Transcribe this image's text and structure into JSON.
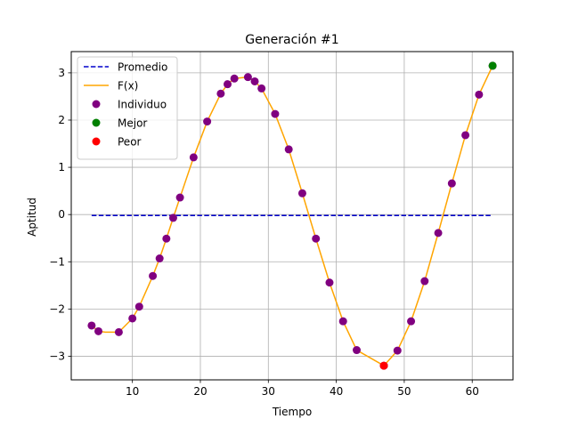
{
  "chart_data": {
    "type": "line",
    "title": "Generación #1",
    "xlabel": "Tiempo",
    "ylabel": "Aptitud",
    "xlim": [
      1,
      66
    ],
    "ylim": [
      -3.5,
      3.45
    ],
    "xticks": [
      10,
      20,
      30,
      40,
      50,
      60
    ],
    "yticks": [
      -3,
      -2,
      -1,
      0,
      1,
      2,
      3
    ],
    "grid": true,
    "legend_position": "top-left",
    "legend": [
      "Promedio",
      "F(x)",
      "Individuo",
      "Mejor",
      "Peor"
    ],
    "series": [
      {
        "name": "Promedio",
        "kind": "dashed-line",
        "color": "#0000cc",
        "x": [
          4,
          63
        ],
        "y": [
          -0.02,
          -0.02
        ]
      },
      {
        "name": "F(x)",
        "kind": "line",
        "color": "#ffa500",
        "x": [
          4,
          5,
          6,
          8,
          10,
          11,
          13,
          14,
          15,
          16,
          17,
          19,
          21,
          23,
          24,
          25,
          27,
          28,
          29,
          31,
          33,
          35,
          37,
          39,
          41,
          43,
          47,
          49,
          51,
          53,
          55,
          57,
          59,
          61,
          63
        ],
        "y": [
          -2.35,
          -2.47,
          -2.49,
          -2.49,
          -2.2,
          -1.95,
          -1.3,
          -0.93,
          -0.51,
          -0.07,
          0.36,
          1.21,
          1.97,
          2.56,
          2.76,
          2.88,
          2.91,
          2.82,
          2.67,
          2.13,
          1.38,
          0.45,
          -0.51,
          -1.44,
          -2.26,
          -2.87,
          -3.2,
          -2.88,
          -2.26,
          -1.41,
          -0.39,
          0.66,
          1.68,
          2.54,
          3.15
        ]
      },
      {
        "name": "Individuo",
        "kind": "scatter",
        "color": "#800080",
        "x": [
          4,
          5,
          8,
          10,
          11,
          13,
          14,
          15,
          16,
          17,
          19,
          21,
          23,
          24,
          25,
          27,
          28,
          29,
          31,
          33,
          35,
          37,
          39,
          41,
          43,
          47,
          49,
          51,
          53,
          55,
          57,
          59,
          61,
          63
        ],
        "y": [
          -2.35,
          -2.47,
          -2.49,
          -2.2,
          -1.95,
          -1.3,
          -0.93,
          -0.51,
          -0.07,
          0.36,
          1.21,
          1.97,
          2.56,
          2.76,
          2.88,
          2.91,
          2.82,
          2.67,
          2.13,
          1.38,
          0.45,
          -0.51,
          -1.44,
          -2.26,
          -2.87,
          -3.2,
          -2.88,
          -2.26,
          -1.41,
          -0.39,
          0.66,
          1.68,
          2.54,
          3.15
        ]
      },
      {
        "name": "Mejor",
        "kind": "scatter",
        "color": "#008000",
        "x": [
          63
        ],
        "y": [
          3.15
        ]
      },
      {
        "name": "Peor",
        "kind": "scatter",
        "color": "#ff0000",
        "x": [
          47
        ],
        "y": [
          -3.2
        ]
      }
    ]
  }
}
